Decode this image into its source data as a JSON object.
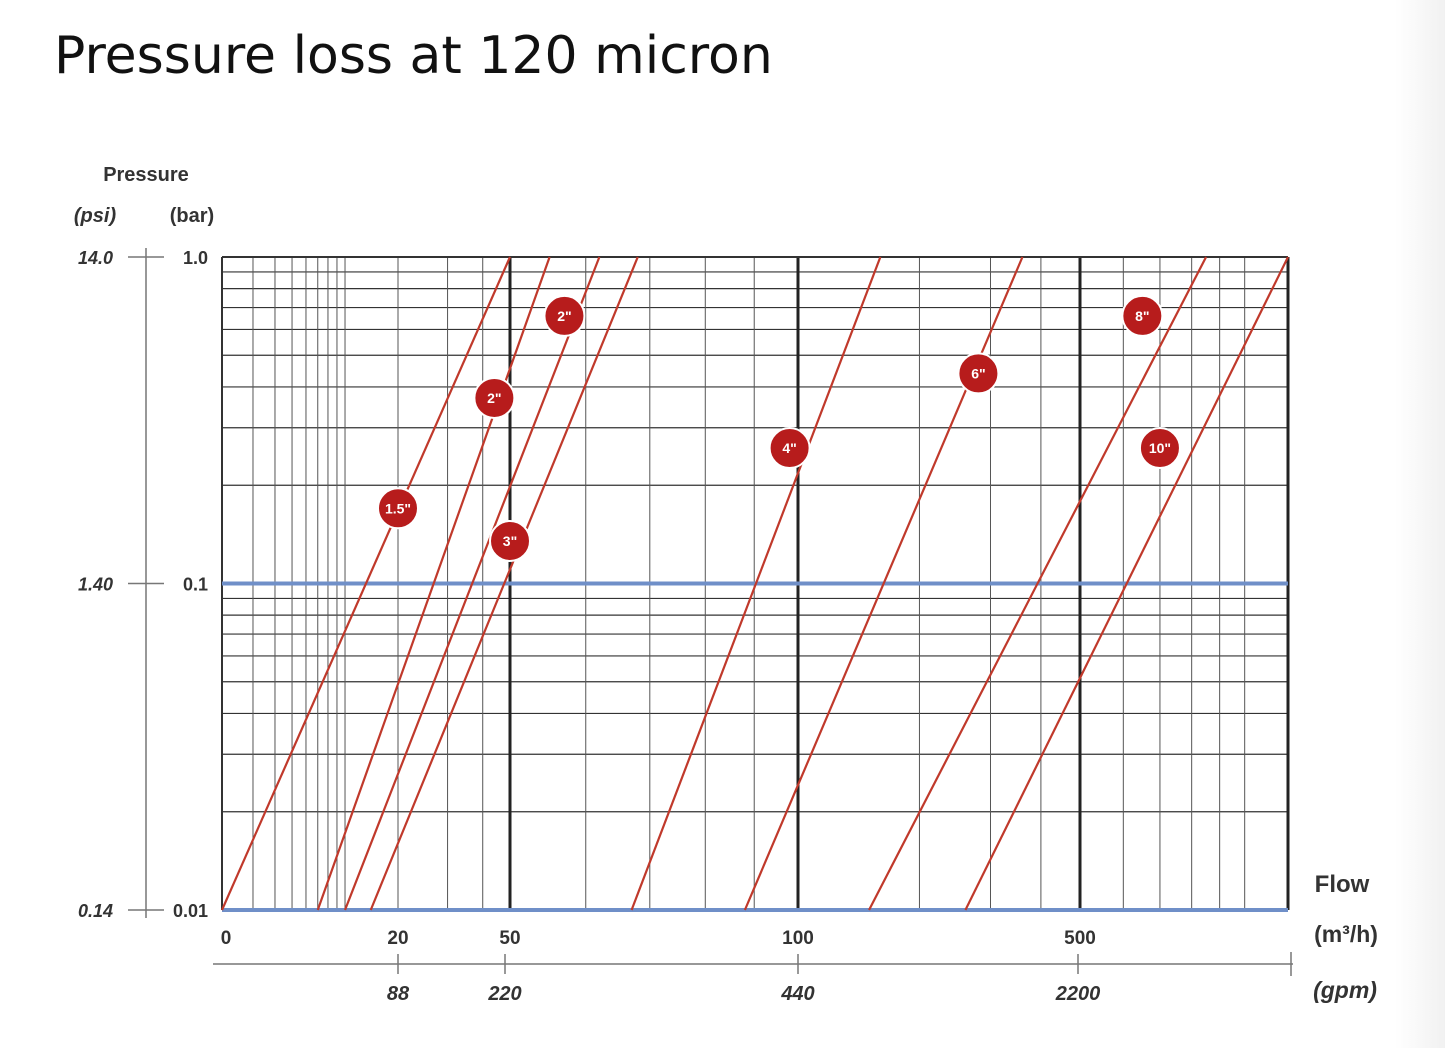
{
  "page": {
    "title": "Pressure loss at 120 micron"
  },
  "chart_data": {
    "type": "line",
    "title": "Pressure loss at 120 micron",
    "y_axis": {
      "title": "Pressure",
      "unit_left": "(psi)",
      "unit_right": "(bar)",
      "scale": "log",
      "bar_range": [
        0.01,
        1.0
      ],
      "ticks": [
        {
          "bar": 1.0,
          "bar_label": "1.0",
          "psi_label": "14.0"
        },
        {
          "bar": 0.1,
          "bar_label": "0.1",
          "psi_label": "1.40"
        },
        {
          "bar": 0.01,
          "bar_label": "0.01",
          "psi_label": "0.14"
        }
      ]
    },
    "x_axis": {
      "title": "Flow",
      "unit_top": "(m³/h)",
      "unit_bottom": "(gpm)",
      "scale": "log",
      "ticks_m3h": [
        {
          "value": 0,
          "label": "0"
        },
        {
          "value": 20,
          "label": "20"
        },
        {
          "value": 50,
          "label": "50"
        },
        {
          "value": 100,
          "label": "100"
        },
        {
          "value": 500,
          "label": "500"
        }
      ],
      "ticks_gpm": [
        {
          "value": 88,
          "label": "88"
        },
        {
          "value": 220,
          "label": "220"
        },
        {
          "value": 440,
          "label": "440"
        },
        {
          "value": 2200,
          "label": "2200"
        }
      ]
    },
    "grid": true,
    "series": [
      {
        "name": "1.5\"",
        "label": "1.5\"",
        "flow_at_0_01_bar": 2,
        "flow_at_1_bar": 50,
        "marker": {
          "flow": 20,
          "pressure_bar": 0.17
        }
      },
      {
        "name": "2\"",
        "label": "2\"",
        "flow_at_0_01_bar": 7,
        "flow_at_1_bar": 55,
        "marker": {
          "flow": 44,
          "pressure_bar": 0.37
        }
      },
      {
        "name": "2\"",
        "label": "2\"",
        "flow_at_0_01_bar": 10,
        "flow_at_1_bar": 62,
        "marker": {
          "flow": 57,
          "pressure_bar": 0.66
        }
      },
      {
        "name": "3\"",
        "label": "3\"",
        "flow_at_0_01_bar": 14,
        "flow_at_1_bar": 68,
        "marker": {
          "flow": 50,
          "pressure_bar": 0.135
        }
      },
      {
        "name": "4\"",
        "label": "4\"",
        "flow_at_0_01_bar": 67,
        "flow_at_1_bar": 160,
        "marker": {
          "flow": 98,
          "pressure_bar": 0.26
        }
      },
      {
        "name": "6\"",
        "label": "6\"",
        "flow_at_0_01_bar": 88,
        "flow_at_1_bar": 360,
        "marker": {
          "flow": 280,
          "pressure_bar": 0.44
        }
      },
      {
        "name": "8\"",
        "label": "8\"",
        "flow_at_0_01_bar": 150,
        "flow_at_1_bar": 850,
        "marker": {
          "flow": 650,
          "pressure_bar": 0.66
        }
      },
      {
        "name": "10\"",
        "label": "10\"",
        "flow_at_0_01_bar": 260,
        "flow_at_1_bar": 1200,
        "marker": {
          "flow": 700,
          "pressure_bar": 0.26
        }
      }
    ]
  }
}
